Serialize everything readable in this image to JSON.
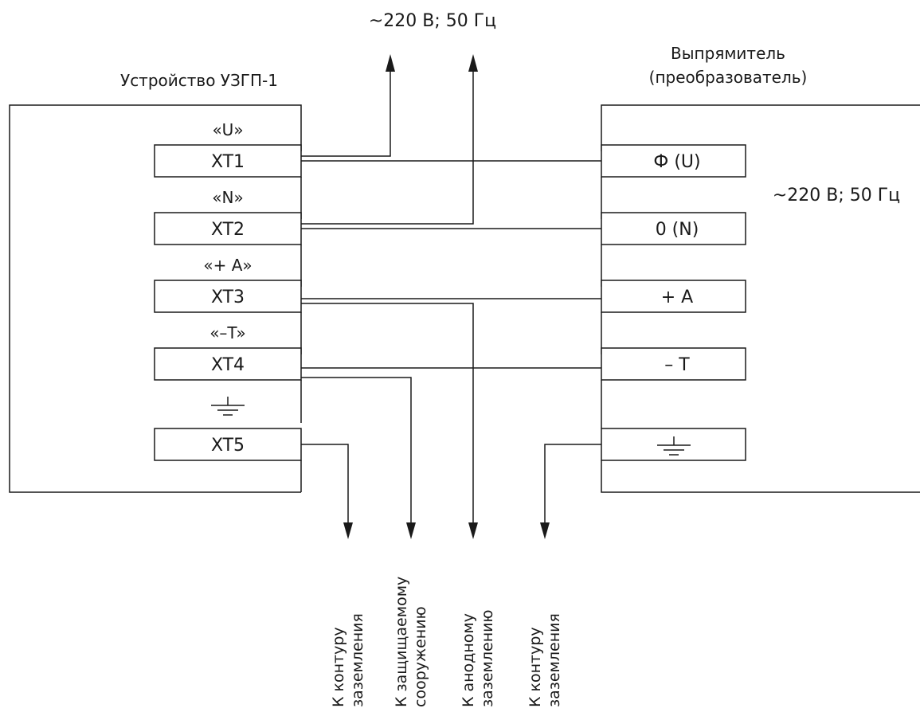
{
  "supply_top": "~220 В; 50 Гц",
  "supply_right": "~220 В; 50 Гц",
  "left_device": {
    "title": "Устройство УЗГП-1",
    "terminals": [
      {
        "tag": "«U»",
        "label": "XT1"
      },
      {
        "tag": "«N»",
        "label": "XT2"
      },
      {
        "tag": "«+ A»",
        "label": "XT3"
      },
      {
        "tag": "«–T»",
        "label": "XT4"
      },
      {
        "tag": "ground-symbol",
        "label": "XT5"
      }
    ]
  },
  "right_device": {
    "title_line1": "Выпрямитель",
    "title_line2": "(преобразователь)",
    "terminals": [
      "Ф (U)",
      "0 (N)",
      "+ A",
      "– T",
      "ground-symbol"
    ]
  },
  "outputs": [
    {
      "line1": "К контуру",
      "line2": "заземления"
    },
    {
      "line1": "К защищаемому",
      "line2": "сооружению"
    },
    {
      "line1": "К анодному",
      "line2": "заземлению"
    },
    {
      "line1": "К контуру",
      "line2": "заземления"
    }
  ]
}
